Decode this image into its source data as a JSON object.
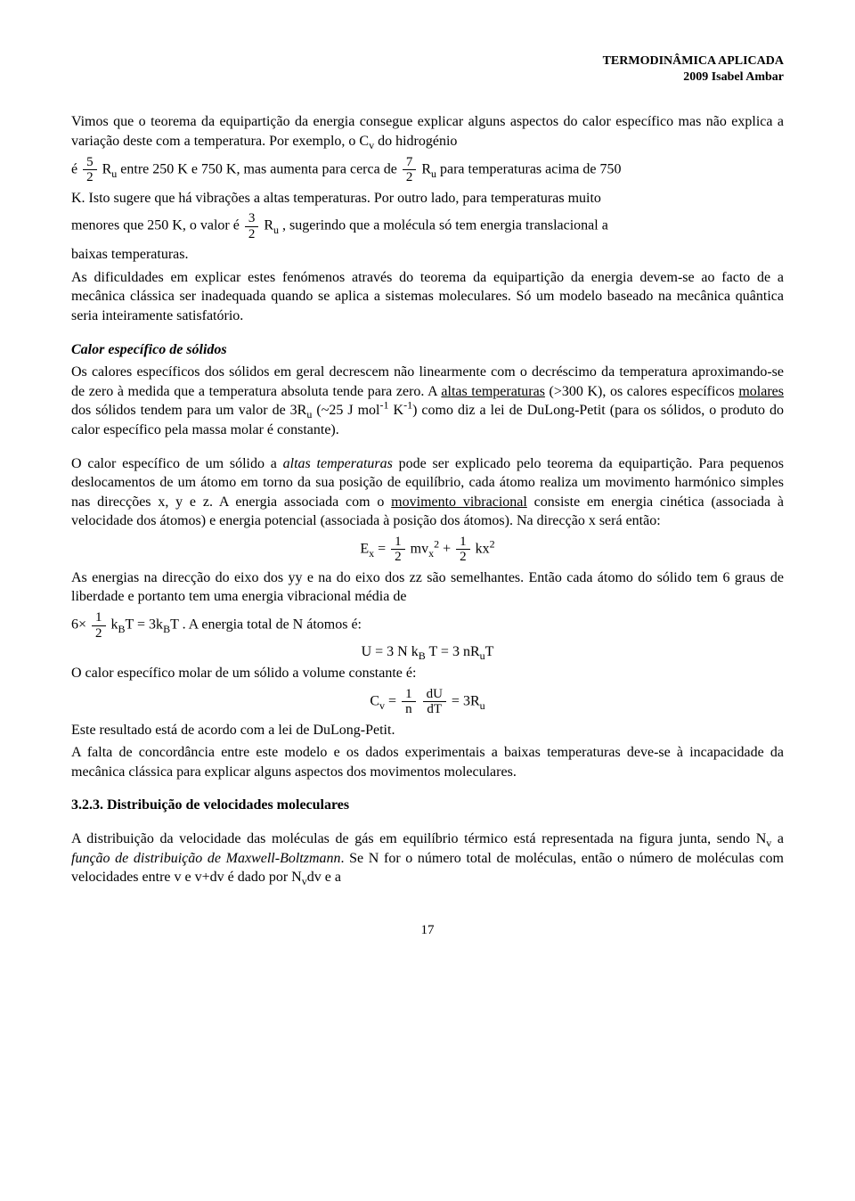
{
  "header": {
    "line1": "TERMODINÂMICA APLICADA",
    "line2": "2009 Isabel Ambar"
  },
  "p1": "Vimos que o teorema da equipartição da energia consegue explicar alguns aspectos do calor específico mas não explica a variação deste com a temperatura. Por exemplo, o C",
  "p1b": " do hidrogénio",
  "p2a": "é ",
  "p2b": " entre 250 K e 750 K, mas aumenta para cerca de ",
  "p2c": " para temperaturas acima de 750",
  "p3a": "K. Isto sugere que há vibrações a altas temperaturas. Por outro lado, para temperaturas muito",
  "p4a": "menores que 250 K, o valor é ",
  "p4b": ", sugerindo que a molécula só tem energia translacional a",
  "p5": "baixas temperaturas.",
  "p6": "As dificuldades em explicar estes fenómenos através do teorema da equipartição da energia devem-se ao facto de a mecânica clássica ser inadequada quando se aplica a sistemas moleculares. Só um modelo baseado na mecânica quântica seria inteiramente satisfatório.",
  "sec1_title": "Calor específico de sólidos",
  "sec1_p1a": "Os calores específicos dos sólidos em geral decrescem não linearmente com o decréscimo da temperatura aproximando-se de zero à medida que a temperatura absoluta tende para zero. A ",
  "sec1_p1u": "altas temperaturas",
  "sec1_p1b": " (>300 K), os calores específicos ",
  "sec1_p1u2": "molares",
  "sec1_p1c": " dos sólidos tendem para um valor de 3R",
  "sec1_p1d": " (~25 J mol",
  "sec1_p1e": " K",
  "sec1_p1f": ") como diz a lei de DuLong-Petit (para os sólidos, o produto do calor específico pela massa molar é constante).",
  "sec1_p2a": "O calor específico de um sólido a ",
  "sec1_p2i": "altas temperaturas",
  "sec1_p2b": " pode ser explicado pelo teorema da equipartição. Para pequenos deslocamentos de um átomo em torno da sua posição de equilíbrio, cada átomo realiza um movimento harmónico simples nas direcções x, y e z. A energia associada com o ",
  "sec1_p2u": "movimento vibracional",
  "sec1_p2c": " consiste em energia cinética (associada à velocidade dos átomos) e energia potencial (associada à posição dos átomos). Na direcção x será então:",
  "eq1_lhs": "E",
  "eq1_mid": "mv",
  "eq1_plus": " + ",
  "eq1_k": "kx",
  "sec1_p3a": "As energias na direcção do eixo dos yy e na do eixo dos zz são semelhantes. Então cada átomo do sólido tem 6 graus de liberdade e portanto tem uma energia vibracional média de",
  "sec1_p4a": ". A energia total de N átomos é:",
  "eq2": "U = 3 N k",
  "eq2b": " T = 3 nR",
  "eq2c": "T",
  "sec1_p5": "O calor específico molar de um sólido a volume constante é:",
  "eq3_lhs": "C",
  "eq3_eq": " = ",
  "eq3_rhs": " = 3R",
  "sec1_p6": "Este resultado está de acordo com a lei de DuLong-Petit.",
  "sec1_p7": "A falta de concordância entre este modelo e os dados experimentais a baixas temperaturas deve-se à incapacidade da mecânica clássica para explicar alguns aspectos dos movimentos moleculares.",
  "sec2_num": "3.2.3. Distribuição de velocidades moleculares",
  "sec2_p1a": "A distribuição da velocidade das moléculas de gás em equilíbrio térmico está representada na figura junta, sendo N",
  "sec2_p1b": " a ",
  "sec2_p1i": "função de distribuição de Maxwell-Boltzmann",
  "sec2_p1c": ". Se N for o número total de moléculas, então o número de moléculas com velocidades entre v e v+dv é dado por N",
  "sec2_p1d": "dv e a",
  "pgnum": "17",
  "frac": {
    "f52n": "5",
    "f52d": "2",
    "f72n": "7",
    "f72d": "2",
    "f32n": "3",
    "f32d": "2",
    "f12n": "1",
    "f12d": "2",
    "f1nn": "1",
    "f1nd": "n",
    "fdUn": "dU",
    "fdUd": "dT"
  },
  "sym": {
    "Ru": "R",
    "sub_u": "u",
    "sub_v": "v",
    "sub_x": "x",
    "sub_B": "B",
    "six": "6×",
    "kBT": "k",
    "eq3k": "= 3k",
    "T": "T"
  },
  "sup": {
    "minus1": "-1",
    "two": "2"
  }
}
